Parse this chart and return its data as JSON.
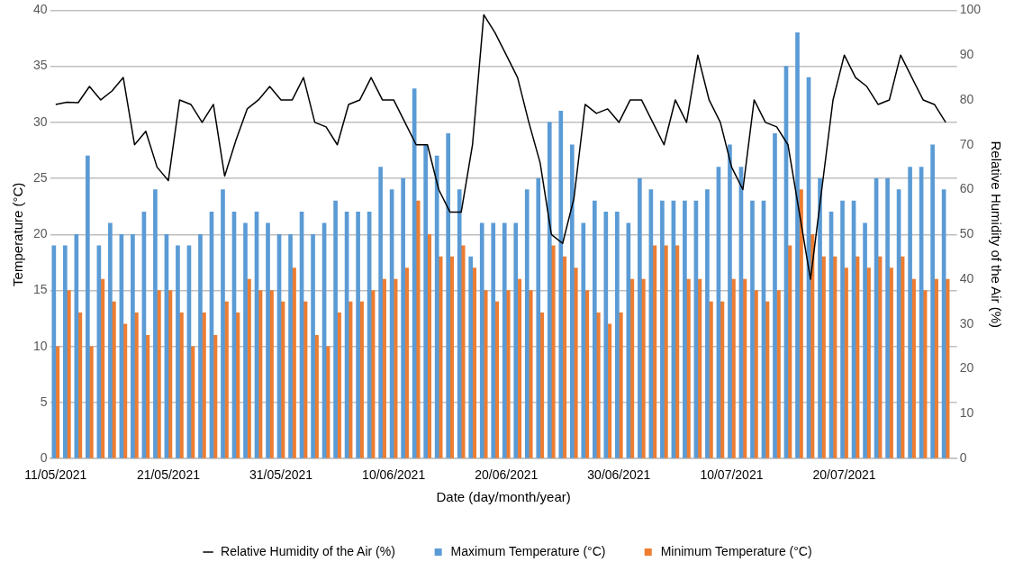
{
  "chart_data": {
    "type": "bar",
    "xlabel": "Date (day/month/year)",
    "ylabel": "Temperature (°C)",
    "y2label": "Relative Humidity of the Air (%)",
    "x": [
      "2021-05-11",
      "2021-05-12",
      "2021-05-13",
      "2021-05-14",
      "2021-05-15",
      "2021-05-16",
      "2021-05-17",
      "2021-05-18",
      "2021-05-19",
      "2021-05-20",
      "2021-05-21",
      "2021-05-22",
      "2021-05-23",
      "2021-05-24",
      "2021-05-25",
      "2021-05-26",
      "2021-05-27",
      "2021-05-28",
      "2021-05-29",
      "2021-05-30",
      "2021-05-31",
      "2021-06-01",
      "2021-06-02",
      "2021-06-03",
      "2021-06-04",
      "2021-06-05",
      "2021-06-06",
      "2021-06-07",
      "2021-06-08",
      "2021-06-09",
      "2021-06-10",
      "2021-06-11",
      "2021-06-12",
      "2021-06-13",
      "2021-06-14",
      "2021-06-15",
      "2021-06-16",
      "2021-06-17",
      "2021-06-18",
      "2021-06-19",
      "2021-06-20",
      "2021-06-21",
      "2021-06-22",
      "2021-06-23",
      "2021-06-24",
      "2021-06-25",
      "2021-06-26",
      "2021-06-27",
      "2021-06-28",
      "2021-06-29",
      "2021-06-30",
      "2021-07-01",
      "2021-07-02",
      "2021-07-03",
      "2021-07-04",
      "2021-07-05",
      "2021-07-06",
      "2021-07-07",
      "2021-07-08",
      "2021-07-09",
      "2021-07-10",
      "2021-07-11",
      "2021-07-12",
      "2021-07-13",
      "2021-07-14",
      "2021-07-15",
      "2021-07-16",
      "2021-07-17",
      "2021-07-18",
      "2021-07-19",
      "2021-07-20",
      "2021-07-21",
      "2021-07-22",
      "2021-07-23",
      "2021-07-24",
      "2021-07-25",
      "2021-07-26",
      "2021-07-27",
      "2021-07-28",
      "2021-07-29"
    ],
    "series": [
      {
        "name": "Maximum Temperature (°C)",
        "color": "#5b9bd5",
        "values": [
          19,
          19,
          20,
          27,
          19,
          21,
          20,
          20,
          22,
          24,
          20,
          19,
          19,
          20,
          22,
          24,
          22,
          21,
          22,
          21,
          20,
          20,
          22,
          20,
          21,
          23,
          22,
          22,
          22,
          26,
          24,
          25,
          33,
          28,
          27,
          29,
          24,
          18,
          21,
          21,
          21,
          21,
          24,
          25,
          30,
          31,
          28,
          21,
          23,
          22,
          22,
          21,
          25,
          24,
          23,
          23,
          23,
          23,
          24,
          26,
          28,
          26,
          23,
          23,
          29,
          35,
          38,
          34,
          25,
          22,
          23,
          23,
          21,
          25,
          25,
          24,
          26,
          26,
          28,
          24
        ]
      },
      {
        "name": "Minimum Temperature (°C)",
        "color": "#ed7d31",
        "values": [
          10,
          15,
          13,
          10,
          16,
          14,
          12,
          13,
          11,
          15,
          15,
          13,
          10,
          13,
          11,
          14,
          13,
          16,
          15,
          15,
          14,
          17,
          14,
          11,
          10,
          13,
          14,
          14,
          15,
          16,
          16,
          17,
          23,
          20,
          18,
          18,
          19,
          17,
          15,
          14,
          15,
          16,
          15,
          13,
          19,
          18,
          17,
          15,
          13,
          12,
          13,
          16,
          16,
          19,
          19,
          19,
          16,
          16,
          14,
          14,
          16,
          16,
          15,
          14,
          15,
          19,
          24,
          20,
          18,
          18,
          17,
          18,
          17,
          18,
          17,
          18,
          16,
          15,
          16,
          16
        ]
      },
      {
        "name": "Relative Humidity of the Air (%)",
        "type": "line",
        "axis": "y2",
        "color": "#000000",
        "marker": "none",
        "values": [
          79,
          79.5,
          79.4,
          83,
          80,
          82,
          85,
          70,
          73,
          65,
          62,
          80,
          79,
          75,
          79,
          63,
          71,
          78,
          80,
          83,
          80,
          80,
          85,
          75,
          74,
          70,
          79,
          80,
          85,
          80,
          80,
          75,
          70,
          70,
          60,
          55,
          55,
          70,
          99,
          95,
          90,
          85,
          75,
          66,
          50,
          48,
          58,
          79,
          77,
          78,
          75,
          80,
          80,
          75,
          70,
          80,
          75,
          90,
          80,
          75,
          65,
          60,
          80,
          75,
          74,
          70,
          55,
          40,
          60,
          80,
          90,
          85,
          83,
          79,
          80,
          90,
          85,
          80,
          79,
          75
        ]
      }
    ],
    "xlim": [
      "2021-05-10T12:00",
      "2021-07-30"
    ],
    "xticks": [
      {
        "value": "2021-05-11",
        "label": "11/05/2021"
      },
      {
        "value": "2021-05-21",
        "label": "21/05/2021"
      },
      {
        "value": "2021-05-31",
        "label": "31/05/2021"
      },
      {
        "value": "2021-06-10",
        "label": "10/06/2021"
      },
      {
        "value": "2021-06-20",
        "label": "20/06/2021"
      },
      {
        "value": "2021-06-30",
        "label": "30/06/2021"
      },
      {
        "value": "2021-07-10",
        "label": "10/07/2021"
      },
      {
        "value": "2021-07-20",
        "label": "20/07/2021"
      }
    ],
    "ylim": [
      0,
      40
    ],
    "yticks": [
      0,
      5,
      10,
      15,
      20,
      25,
      30,
      35,
      40
    ],
    "y2lim": [
      0,
      100
    ],
    "y2ticks": [
      0,
      10,
      20,
      30,
      40,
      50,
      60,
      70,
      80,
      90,
      100
    ],
    "grid": "y",
    "legend": "bottom"
  }
}
